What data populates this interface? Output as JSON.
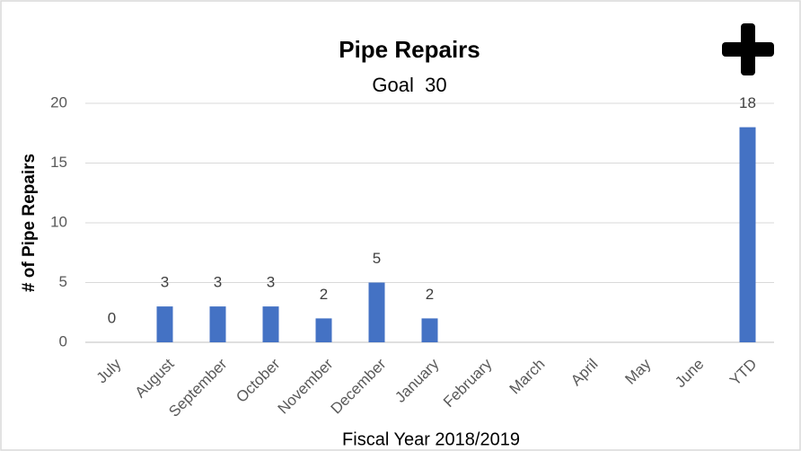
{
  "chart_data": {
    "type": "bar",
    "title": "Pipe Repairs",
    "subtitle": "Goal  30",
    "y_label": "# of Pipe Repairs",
    "x_label": "Fiscal Year 2018/2019",
    "categories": [
      "July",
      "August",
      "September",
      "October",
      "November",
      "December",
      "January",
      "February",
      "March",
      "April",
      "May",
      "June",
      "YTD"
    ],
    "values": [
      0,
      3,
      3,
      3,
      2,
      5,
      2,
      null,
      null,
      null,
      null,
      null,
      18
    ],
    "color": "#4472c4",
    "ylim": [
      0,
      20
    ],
    "yticks": [
      0,
      5,
      10,
      15,
      20
    ],
    "grid": true
  }
}
